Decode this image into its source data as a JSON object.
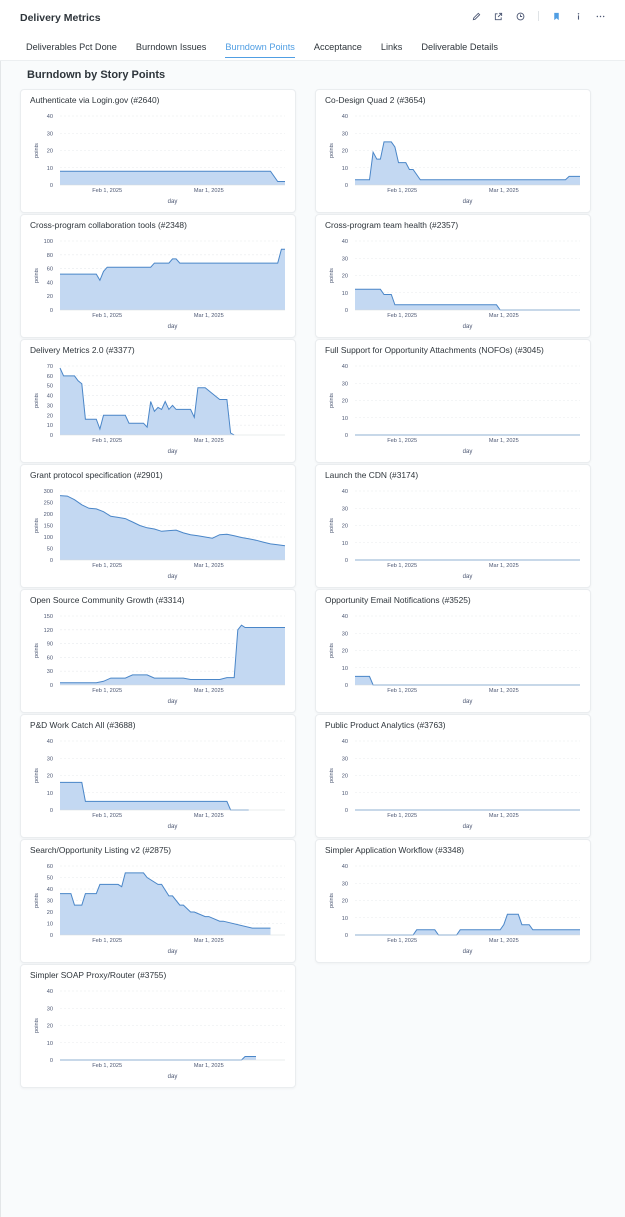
{
  "header": {
    "title": "Delivery Metrics",
    "tabs": [
      {
        "label": "Deliverables Pct Done"
      },
      {
        "label": "Burndown Issues"
      },
      {
        "label": "Burndown Points",
        "active": true
      },
      {
        "label": "Acceptance"
      },
      {
        "label": "Links"
      },
      {
        "label": "Deliverable Details"
      }
    ],
    "icons": [
      "pencil-icon",
      "share-icon",
      "clock-icon",
      "bookmark-icon",
      "info-icon",
      "more-icon"
    ]
  },
  "section": {
    "title": "Burndown by Story Points"
  },
  "colors": {
    "accent": "#509ee3",
    "line": "#4a86c8",
    "fill": "#c3d8f2"
  },
  "chart_data": [
    {
      "type": "area",
      "title": "Authenticate via Login.gov (#2640)",
      "xlabel": "day",
      "ylabel": "points",
      "ylim": [
        0,
        40
      ],
      "yticks": [
        0,
        10,
        20,
        30,
        40
      ],
      "xticks": [
        {
          "x": 13,
          "label": "Feb 1, 2025"
        },
        {
          "x": 41,
          "label": "Mar 1, 2025"
        }
      ],
      "x": [
        0,
        58,
        60,
        62
      ],
      "values": [
        8,
        8,
        2,
        2
      ]
    },
    {
      "type": "area",
      "title": "Co-Design Quad 2 (#3654)",
      "xlabel": "day",
      "ylabel": "points",
      "ylim": [
        0,
        40
      ],
      "yticks": [
        0,
        10,
        20,
        30,
        40
      ],
      "xticks": [
        {
          "x": 13,
          "label": "Feb 1, 2025"
        },
        {
          "x": 41,
          "label": "Mar 1, 2025"
        }
      ],
      "x": [
        0,
        4,
        5,
        6,
        7,
        8,
        10,
        11,
        12,
        13,
        14,
        15,
        16,
        18,
        58,
        59,
        62
      ],
      "values": [
        3,
        3,
        19,
        15,
        15,
        25,
        25,
        22,
        13,
        13,
        13,
        9,
        9,
        3,
        3,
        5,
        5
      ]
    },
    {
      "type": "area",
      "title": "Cross-program collaboration tools (#2348)",
      "xlabel": "day",
      "ylabel": "points",
      "ylim": [
        0,
        100
      ],
      "yticks": [
        0,
        20,
        40,
        60,
        80,
        100
      ],
      "xticks": [
        {
          "x": 13,
          "label": "Feb 1, 2025"
        },
        {
          "x": 41,
          "label": "Mar 1, 2025"
        }
      ],
      "x": [
        0,
        10,
        11,
        12,
        13,
        25,
        26,
        30,
        31,
        32,
        33,
        60,
        61,
        62
      ],
      "values": [
        52,
        52,
        43,
        56,
        62,
        62,
        68,
        68,
        74,
        74,
        68,
        68,
        88,
        88
      ]
    },
    {
      "type": "area",
      "title": "Cross-program team health (#2357)",
      "xlabel": "day",
      "ylabel": "points",
      "ylim": [
        0,
        40
      ],
      "yticks": [
        0,
        10,
        20,
        30,
        40
      ],
      "xticks": [
        {
          "x": 13,
          "label": "Feb 1, 2025"
        },
        {
          "x": 41,
          "label": "Mar 1, 2025"
        }
      ],
      "x": [
        0,
        7,
        8,
        10,
        11,
        39,
        40,
        62
      ],
      "values": [
        12,
        12,
        9,
        9,
        3,
        3,
        0,
        0
      ]
    },
    {
      "type": "area",
      "title": "Delivery Metrics 2.0 (#3377)",
      "xlabel": "day",
      "ylabel": "points",
      "ylim": [
        0,
        70
      ],
      "yticks": [
        0,
        10,
        20,
        30,
        40,
        50,
        60,
        70
      ],
      "xticks": [
        {
          "x": 13,
          "label": "Feb 1, 2025"
        },
        {
          "x": 41,
          "label": "Mar 1, 2025"
        }
      ],
      "x": [
        0,
        1,
        4,
        5,
        6,
        7,
        10,
        11,
        12,
        18,
        19,
        23,
        24,
        25,
        26,
        27,
        28,
        29,
        30,
        31,
        32,
        36,
        37,
        38,
        40,
        42,
        44,
        46,
        47,
        48
      ],
      "values": [
        68,
        60,
        60,
        55,
        52,
        16,
        16,
        6,
        20,
        20,
        12,
        12,
        8,
        34,
        24,
        28,
        26,
        34,
        26,
        30,
        26,
        26,
        18,
        48,
        48,
        42,
        36,
        36,
        2,
        0
      ]
    },
    {
      "type": "area",
      "title": "Full Support for Opportunity Attachments (NOFOs) (#3045)",
      "xlabel": "day",
      "ylabel": "points",
      "ylim": [
        0,
        40
      ],
      "yticks": [
        0,
        10,
        20,
        30,
        40
      ],
      "xticks": [
        {
          "x": 13,
          "label": "Feb 1, 2025"
        },
        {
          "x": 41,
          "label": "Mar 1, 2025"
        }
      ],
      "x": [
        0,
        62
      ],
      "values": [
        0,
        0
      ]
    },
    {
      "type": "area",
      "title": "Grant protocol specification (#2901)",
      "xlabel": "day",
      "ylabel": "points",
      "ylim": [
        0,
        300
      ],
      "yticks": [
        0,
        50,
        100,
        150,
        200,
        250,
        300
      ],
      "xticks": [
        {
          "x": 13,
          "label": "Feb 1, 2025"
        },
        {
          "x": 41,
          "label": "Mar 1, 2025"
        }
      ],
      "x": [
        0,
        2,
        4,
        6,
        8,
        10,
        12,
        14,
        16,
        18,
        20,
        22,
        24,
        26,
        28,
        30,
        32,
        34,
        36,
        38,
        40,
        42,
        44,
        46,
        48,
        50,
        52,
        54,
        56,
        58,
        60,
        62
      ],
      "values": [
        280,
        278,
        262,
        240,
        225,
        222,
        210,
        190,
        185,
        180,
        165,
        150,
        140,
        135,
        125,
        128,
        130,
        118,
        110,
        105,
        100,
        95,
        110,
        112,
        105,
        98,
        92,
        86,
        78,
        70,
        66,
        62
      ]
    },
    {
      "type": "area",
      "title": "Launch the CDN (#3174)",
      "xlabel": "day",
      "ylabel": "points",
      "ylim": [
        0,
        40
      ],
      "yticks": [
        0,
        10,
        20,
        30,
        40
      ],
      "xticks": [
        {
          "x": 13,
          "label": "Feb 1, 2025"
        },
        {
          "x": 41,
          "label": "Mar 1, 2025"
        }
      ],
      "x": [
        0,
        62
      ],
      "values": [
        0,
        0
      ]
    },
    {
      "type": "area",
      "title": "Open Source Community Growth (#3314)",
      "xlabel": "day",
      "ylabel": "points",
      "ylim": [
        0,
        150
      ],
      "yticks": [
        0,
        30,
        60,
        90,
        120,
        150
      ],
      "xticks": [
        {
          "x": 13,
          "label": "Feb 1, 2025"
        },
        {
          "x": 41,
          "label": "Mar 1, 2025"
        }
      ],
      "x": [
        0,
        10,
        12,
        14,
        18,
        20,
        24,
        26,
        34,
        36,
        44,
        46,
        48,
        49,
        50,
        51,
        62
      ],
      "values": [
        5,
        5,
        8,
        15,
        15,
        22,
        22,
        15,
        15,
        12,
        12,
        16,
        16,
        120,
        130,
        125,
        125
      ]
    },
    {
      "type": "area",
      "title": "Opportunity Email Notifications (#3525)",
      "xlabel": "day",
      "ylabel": "points",
      "ylim": [
        0,
        40
      ],
      "yticks": [
        0,
        10,
        20,
        30,
        40
      ],
      "xticks": [
        {
          "x": 13,
          "label": "Feb 1, 2025"
        },
        {
          "x": 41,
          "label": "Mar 1, 2025"
        }
      ],
      "x": [
        0,
        4,
        5,
        62
      ],
      "values": [
        5,
        5,
        0,
        0
      ]
    },
    {
      "type": "area",
      "title": "P&D Work Catch All (#3688)",
      "xlabel": "day",
      "ylabel": "points",
      "ylim": [
        0,
        40
      ],
      "yticks": [
        0,
        10,
        20,
        30,
        40
      ],
      "xticks": [
        {
          "x": 13,
          "label": "Feb 1, 2025"
        },
        {
          "x": 41,
          "label": "Mar 1, 2025"
        }
      ],
      "x": [
        0,
        6,
        7,
        46,
        47,
        52
      ],
      "values": [
        16,
        16,
        5,
        5,
        0,
        0
      ]
    },
    {
      "type": "area",
      "title": "Public Product Analytics (#3763)",
      "xlabel": "day",
      "ylabel": "points",
      "ylim": [
        0,
        40
      ],
      "yticks": [
        0,
        10,
        20,
        30,
        40
      ],
      "xticks": [
        {
          "x": 13,
          "label": "Feb 1, 2025"
        },
        {
          "x": 41,
          "label": "Mar 1, 2025"
        }
      ],
      "x": [
        0,
        62
      ],
      "values": [
        0,
        0
      ]
    },
    {
      "type": "area",
      "title": "Search/Opportunity Listing v2 (#2875)",
      "xlabel": "day",
      "ylabel": "points",
      "ylim": [
        0,
        60
      ],
      "yticks": [
        0,
        10,
        20,
        30,
        40,
        50,
        60
      ],
      "xticks": [
        {
          "x": 13,
          "label": "Feb 1, 2025"
        },
        {
          "x": 41,
          "label": "Mar 1, 2025"
        }
      ],
      "x": [
        0,
        3,
        4,
        6,
        7,
        10,
        11,
        16,
        17,
        18,
        23,
        24,
        27,
        28,
        30,
        31,
        33,
        34,
        36,
        37,
        40,
        41,
        44,
        45,
        53,
        54,
        58
      ],
      "values": [
        36,
        36,
        26,
        26,
        36,
        36,
        44,
        44,
        42,
        54,
        54,
        50,
        44,
        44,
        34,
        34,
        26,
        26,
        20,
        20,
        16,
        16,
        12,
        12,
        6,
        6,
        6
      ]
    },
    {
      "type": "area",
      "title": "Simpler Application Workflow (#3348)",
      "xlabel": "day",
      "ylabel": "points",
      "ylim": [
        0,
        40
      ],
      "yticks": [
        0,
        10,
        20,
        30,
        40
      ],
      "xticks": [
        {
          "x": 13,
          "label": "Feb 1, 2025"
        },
        {
          "x": 41,
          "label": "Mar 1, 2025"
        }
      ],
      "x": [
        0,
        16,
        17,
        22,
        23,
        28,
        29,
        40,
        41,
        42,
        45,
        46,
        48,
        49,
        50,
        62
      ],
      "values": [
        0,
        0,
        3,
        3,
        0,
        0,
        3,
        3,
        6,
        12,
        12,
        6,
        6,
        3,
        3,
        3
      ]
    },
    {
      "type": "area",
      "title": "Simpler SOAP Proxy/Router (#3755)",
      "xlabel": "day",
      "ylabel": "points",
      "ylim": [
        0,
        40
      ],
      "yticks": [
        0,
        10,
        20,
        30,
        40
      ],
      "xticks": [
        {
          "x": 13,
          "label": "Feb 1, 2025"
        },
        {
          "x": 41,
          "label": "Mar 1, 2025"
        }
      ],
      "x": [
        0,
        50,
        51,
        54
      ],
      "values": [
        0,
        0,
        2,
        2
      ]
    }
  ]
}
